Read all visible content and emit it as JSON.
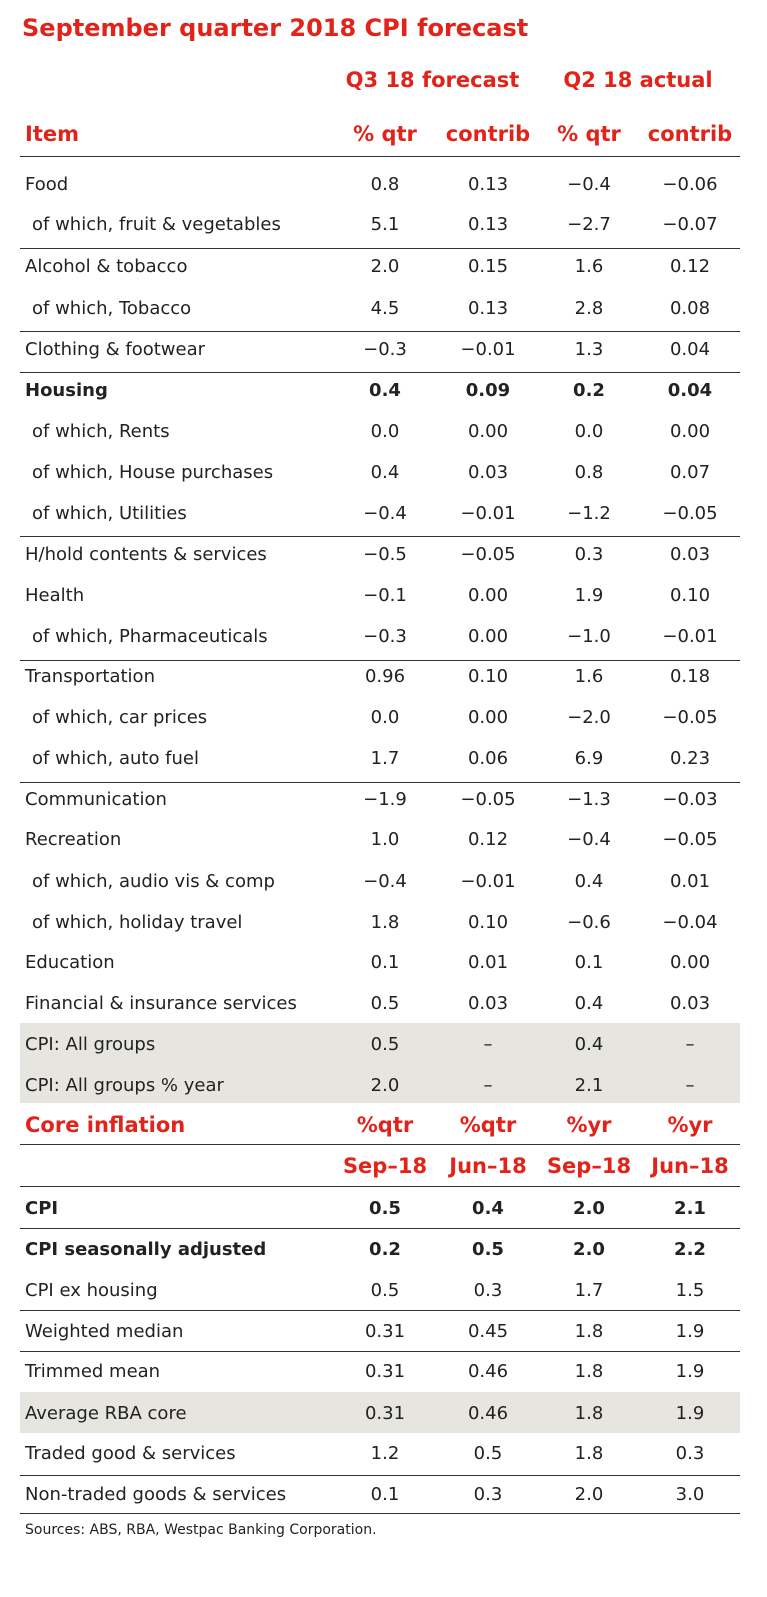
{
  "title": "September quarter 2018 CPI forecast",
  "groups": [
    "Q3 18 forecast",
    "Q2 18 actual"
  ],
  "header": [
    "Item",
    "% qtr",
    "contrib",
    "% qtr",
    "contrib"
  ],
  "items": [
    {
      "label": "Food",
      "v": [
        "0.8",
        "0.13",
        "−0.4",
        "−0.06"
      ]
    },
    {
      "label": "of which, fruit & vegetables",
      "v": [
        "5.1",
        "0.13",
        "−2.7",
        "−0.07"
      ]
    },
    {
      "label": "Alcohol & tobacco",
      "v": [
        "2.0",
        "0.15",
        "1.6",
        "0.12"
      ]
    },
    {
      "label": "of which, Tobacco",
      "v": [
        "4.5",
        "0.13",
        "2.8",
        "0.08"
      ]
    },
    {
      "label": "Clothing & footwear",
      "v": [
        "−0.3",
        "−0.01",
        "1.3",
        "0.04"
      ]
    },
    {
      "label": "Housing",
      "v": [
        "0.4",
        "0.09",
        "0.2",
        "0.04"
      ]
    },
    {
      "label": "of which, Rents",
      "v": [
        "0.0",
        "0.00",
        "0.0",
        "0.00"
      ]
    },
    {
      "label": "of which, House purchases",
      "v": [
        "0.4",
        "0.03",
        "0.8",
        "0.07"
      ]
    },
    {
      "label": "of which, Utilities",
      "v": [
        "−0.4",
        "−0.01",
        "−1.2",
        "−0.05"
      ]
    },
    {
      "label": "H/hold contents & services",
      "v": [
        "−0.5",
        "−0.05",
        "0.3",
        "0.03"
      ]
    },
    {
      "label": "Health",
      "v": [
        "−0.1",
        "0.00",
        "1.9",
        "0.10"
      ]
    },
    {
      "label": "of which, Pharmaceuticals",
      "v": [
        "−0.3",
        "0.00",
        "−1.0",
        "−0.01"
      ]
    },
    {
      "label": "Transportation",
      "v": [
        "0.96",
        "0.10",
        "1.6",
        "0.18"
      ]
    },
    {
      "label": "of which, car prices",
      "v": [
        "0.0",
        "0.00",
        "−2.0",
        "−0.05"
      ]
    },
    {
      "label": "of which, auto fuel",
      "v": [
        "1.7",
        "0.06",
        "6.9",
        "0.23"
      ]
    },
    {
      "label": "Communication",
      "v": [
        "−1.9",
        "−0.05",
        "−1.3",
        "−0.03"
      ]
    },
    {
      "label": "Recreation",
      "v": [
        "1.0",
        "0.12",
        "−0.4",
        "−0.05"
      ]
    },
    {
      "label": "of which, audio vis & comp",
      "v": [
        "−0.4",
        "−0.01",
        "0.4",
        "0.01"
      ]
    },
    {
      "label": "of which, holiday travel",
      "v": [
        "1.8",
        "0.10",
        "−0.6",
        "−0.04"
      ]
    },
    {
      "label": "Education",
      "v": [
        "0.1",
        "0.01",
        "0.1",
        "0.00"
      ]
    },
    {
      "label": "Financial & insurance services",
      "v": [
        "0.5",
        "0.03",
        "0.4",
        "0.03"
      ]
    },
    {
      "label": "CPI: All groups",
      "v": [
        "0.5",
        "–",
        "0.4",
        "–"
      ]
    },
    {
      "label": "CPI: All groups % year",
      "v": [
        "2.0",
        "–",
        "2.1",
        "–"
      ]
    }
  ],
  "core_header": [
    "Core inflation",
    "%qtr",
    "%qtr",
    "%yr",
    "%yr"
  ],
  "core_periods": [
    "Sep–18",
    "Jun–18",
    "Sep–18",
    "Jun–18"
  ],
  "core": [
    {
      "label": "CPI",
      "v": [
        "0.5",
        "0.4",
        "2.0",
        "2.1"
      ]
    },
    {
      "label": "CPI seasonally adjusted",
      "v": [
        "0.2",
        "0.5",
        "2.0",
        "2.2"
      ]
    },
    {
      "label": "CPI ex housing",
      "v": [
        "0.5",
        "0.3",
        "1.7",
        "1.5"
      ]
    },
    {
      "label": "Weighted median",
      "v": [
        "0.31",
        "0.45",
        "1.8",
        "1.9"
      ]
    },
    {
      "label": "Trimmed mean",
      "v": [
        "0.31",
        "0.46",
        "1.8",
        "1.9"
      ]
    },
    {
      "label": "Average RBA core",
      "v": [
        "0.31",
        "0.46",
        "1.8",
        "1.9"
      ]
    },
    {
      "label": "Traded good & services",
      "v": [
        "1.2",
        "0.5",
        "1.8",
        "0.3"
      ]
    },
    {
      "label": "Non-traded goods & services",
      "v": [
        "0.1",
        "0.3",
        "2.0",
        "3.0"
      ]
    }
  ],
  "sources": "Sources: ABS, RBA, Westpac Banking Corporation.",
  "colors": {
    "accent": "#e2231a",
    "shade": "#e6e5e0",
    "rule": "#333333"
  }
}
